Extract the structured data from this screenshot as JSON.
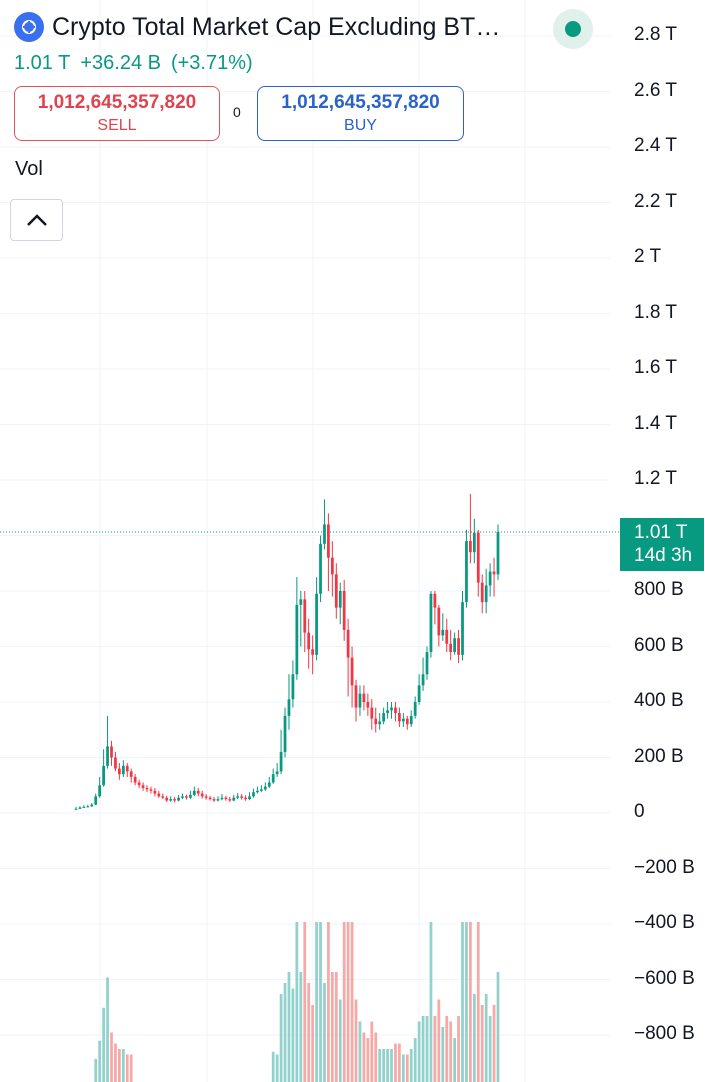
{
  "symbol": {
    "title": "Crypto Total Market Cap Excluding BT…",
    "last_value": "1.01 T",
    "change": "+36.24 B",
    "change_pct": "(+3.71%)",
    "icon": "crypto-logo-icon",
    "status_icon": "market-open-dot-icon"
  },
  "order": {
    "sell_price": "1,012,645,357,820",
    "sell_label": "SELL",
    "spread": "0",
    "buy_price": "1,012,645,357,820",
    "buy_label": "BUY"
  },
  "indicator": {
    "label": "Vol",
    "collapse_icon": "chevron-up-icon"
  },
  "price_tag": {
    "value": "1.01 T",
    "countdown": "14d 3h"
  },
  "colors": {
    "up": "#089981",
    "down": "#f23645",
    "up_volume": "#92d2cc",
    "down_volume": "#f7a9a7",
    "accent": "#2962ff"
  },
  "chart_data": {
    "type": "candlestick",
    "title": "Crypto Total Market Cap Excluding BT…",
    "y_axis": {
      "ticks": [
        "2.8 T",
        "2.6 T",
        "2.4 T",
        "2.2 T",
        "2 T",
        "1.8 T",
        "1.6 T",
        "1.4 T",
        "1.2 T",
        "1 T",
        "800 B",
        "600 B",
        "400 B",
        "200 B",
        "0",
        "−200 B",
        "−400 B",
        "−600 B",
        "−800 B"
      ],
      "tick_values": [
        2800,
        2600,
        2400,
        2200,
        2000,
        1800,
        1600,
        1400,
        1200,
        1000,
        800,
        600,
        400,
        200,
        0,
        -200,
        -400,
        -600,
        -800
      ],
      "unit": "B",
      "range": [
        -800,
        2800
      ]
    },
    "last_price": 1012.6,
    "grid": true,
    "candles": [
      [
        14,
        15,
        22,
        12
      ],
      [
        15,
        20,
        24,
        14
      ],
      [
        20,
        22,
        28,
        18
      ],
      [
        22,
        24,
        30,
        20
      ],
      [
        24,
        30,
        36,
        22
      ],
      [
        30,
        60,
        70,
        28
      ],
      [
        60,
        100,
        130,
        55
      ],
      [
        100,
        170,
        230,
        95
      ],
      [
        170,
        240,
        350,
        160
      ],
      [
        240,
        200,
        260,
        170
      ],
      [
        200,
        160,
        220,
        150
      ],
      [
        160,
        140,
        180,
        120
      ],
      [
        140,
        170,
        190,
        130
      ],
      [
        170,
        150,
        180,
        130
      ],
      [
        150,
        130,
        160,
        110
      ],
      [
        130,
        110,
        140,
        100
      ],
      [
        110,
        100,
        120,
        90
      ],
      [
        100,
        90,
        110,
        80
      ],
      [
        90,
        85,
        100,
        75
      ],
      [
        85,
        80,
        95,
        70
      ],
      [
        80,
        70,
        90,
        60
      ],
      [
        70,
        60,
        80,
        55
      ],
      [
        60,
        55,
        70,
        50
      ],
      [
        55,
        45,
        62,
        40
      ],
      [
        45,
        50,
        60,
        40
      ],
      [
        50,
        45,
        58,
        38
      ],
      [
        45,
        55,
        65,
        42
      ],
      [
        55,
        60,
        70,
        50
      ],
      [
        60,
        55,
        66,
        48
      ],
      [
        55,
        65,
        80,
        50
      ],
      [
        65,
        80,
        95,
        60
      ],
      [
        80,
        70,
        90,
        60
      ],
      [
        70,
        60,
        80,
        52
      ],
      [
        60,
        55,
        68,
        48
      ],
      [
        55,
        50,
        62,
        45
      ],
      [
        50,
        45,
        58,
        40
      ],
      [
        45,
        50,
        60,
        42
      ],
      [
        50,
        55,
        68,
        46
      ],
      [
        55,
        50,
        62,
        44
      ],
      [
        50,
        45,
        58,
        40
      ],
      [
        45,
        55,
        66,
        42
      ],
      [
        55,
        60,
        72,
        50
      ],
      [
        60,
        55,
        68,
        48
      ],
      [
        55,
        50,
        64,
        44
      ],
      [
        50,
        60,
        75,
        46
      ],
      [
        60,
        75,
        88,
        55
      ],
      [
        75,
        80,
        95,
        70
      ],
      [
        80,
        85,
        100,
        75
      ],
      [
        85,
        95,
        110,
        80
      ],
      [
        95,
        110,
        130,
        90
      ],
      [
        110,
        140,
        160,
        105
      ],
      [
        140,
        150,
        180,
        130
      ],
      [
        150,
        220,
        300,
        140
      ],
      [
        220,
        350,
        380,
        200
      ],
      [
        350,
        410,
        500,
        300
      ],
      [
        410,
        500,
        550,
        380
      ],
      [
        500,
        750,
        850,
        480
      ],
      [
        750,
        770,
        800,
        600
      ],
      [
        770,
        650,
        800,
        580
      ],
      [
        650,
        590,
        700,
        520
      ],
      [
        590,
        570,
        640,
        500
      ],
      [
        570,
        790,
        850,
        550
      ],
      [
        790,
        970,
        1000,
        760
      ],
      [
        970,
        1040,
        1130,
        950
      ],
      [
        1040,
        920,
        1080,
        800
      ],
      [
        920,
        860,
        980,
        780
      ],
      [
        860,
        740,
        900,
        700
      ],
      [
        740,
        800,
        830,
        680
      ],
      [
        800,
        660,
        840,
        620
      ],
      [
        660,
        560,
        700,
        420
      ],
      [
        560,
        460,
        600,
        380
      ],
      [
        460,
        380,
        480,
        330
      ],
      [
        380,
        430,
        460,
        350
      ],
      [
        430,
        400,
        460,
        370
      ],
      [
        400,
        380,
        430,
        350
      ],
      [
        380,
        340,
        410,
        300
      ],
      [
        340,
        320,
        380,
        290
      ],
      [
        320,
        330,
        360,
        300
      ],
      [
        330,
        360,
        380,
        320
      ],
      [
        360,
        370,
        400,
        340
      ],
      [
        370,
        380,
        400,
        340
      ],
      [
        380,
        360,
        400,
        330
      ],
      [
        360,
        330,
        380,
        310
      ],
      [
        330,
        340,
        360,
        310
      ],
      [
        340,
        320,
        350,
        300
      ],
      [
        320,
        350,
        370,
        310
      ],
      [
        350,
        400,
        420,
        340
      ],
      [
        400,
        460,
        500,
        390
      ],
      [
        460,
        500,
        560,
        440
      ],
      [
        500,
        580,
        600,
        480
      ],
      [
        580,
        790,
        800,
        560
      ],
      [
        790,
        740,
        800,
        680
      ],
      [
        740,
        640,
        750,
        600
      ],
      [
        640,
        660,
        720,
        620
      ],
      [
        660,
        610,
        700,
        580
      ],
      [
        610,
        580,
        660,
        550
      ],
      [
        580,
        630,
        650,
        570
      ],
      [
        630,
        570,
        660,
        540
      ],
      [
        570,
        760,
        800,
        550
      ],
      [
        760,
        980,
        1020,
        740
      ],
      [
        980,
        940,
        1150,
        900
      ],
      [
        940,
        1010,
        1060,
        900
      ],
      [
        1010,
        830,
        1020,
        780
      ],
      [
        830,
        760,
        860,
        720
      ],
      [
        760,
        820,
        880,
        720
      ],
      [
        820,
        870,
        900,
        780
      ],
      [
        870,
        860,
        920,
        780
      ],
      [
        860,
        1012.6,
        1040,
        840
      ]
    ],
    "volume_ticks": [
      "v1",
      "v2"
    ]
  }
}
